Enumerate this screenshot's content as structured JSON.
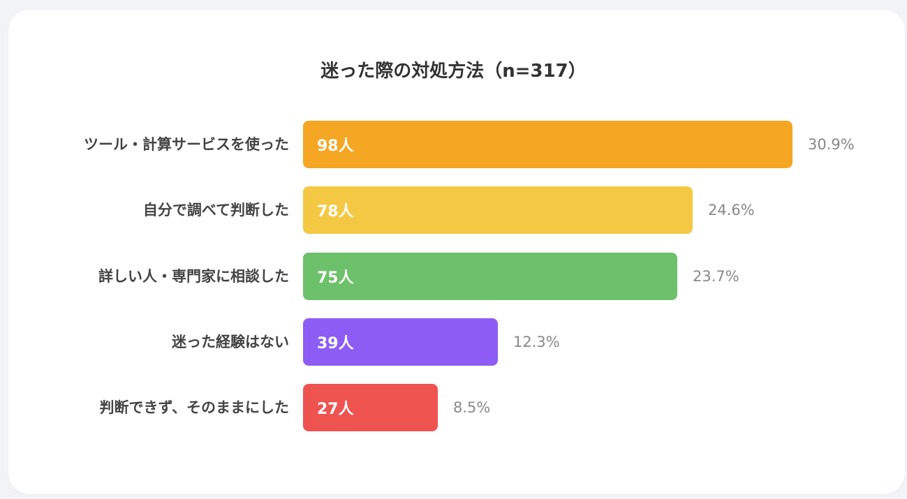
{
  "chart_data": {
    "type": "bar",
    "orientation": "horizontal",
    "title": "迷った際の対処方法（n=317）",
    "categories": [
      "ツール・計算サービスを使った",
      "自分で調べて判断した",
      "詳しい人・専門家に相談した",
      "迷った経験はない",
      "判断できず、そのままにした"
    ],
    "values": [
      98,
      78,
      75,
      39,
      27
    ],
    "value_labels": [
      "98人",
      "78人",
      "75人",
      "39人",
      "27人"
    ],
    "percent_labels": [
      "30.9%",
      "24.6%",
      "23.7%",
      "12.3%",
      "8.5%"
    ],
    "colors": [
      "#f5a623",
      "#f4c842",
      "#6cc16a",
      "#8c5cf5",
      "#ef5350"
    ],
    "xlim": [
      0,
      98
    ],
    "grid": false,
    "legend": "none"
  }
}
